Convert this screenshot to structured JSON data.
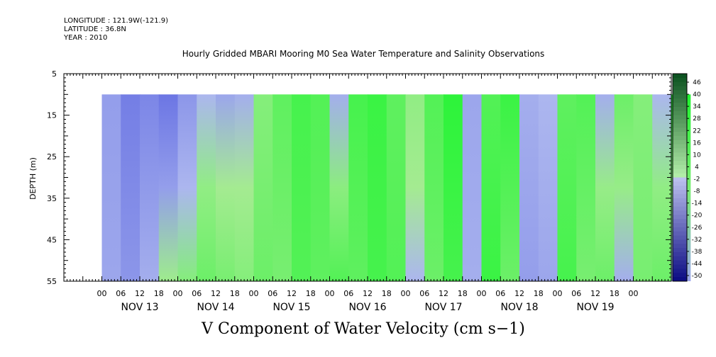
{
  "header": {
    "longitude": "LONGITUDE : 121.9W(-121.9)",
    "latitude": "LATITUDE : 36.8N",
    "year": "YEAR : 2010"
  },
  "chart_data": {
    "type": "heatmap",
    "title": "Hourly Gridded MBARI Mooring M0 Sea Water Temperature and Salinity Observations",
    "xlabel": "V Component of Water Velocity (cm s−1)",
    "ylabel": "DEPTH (m)",
    "ylim": [
      55,
      5
    ],
    "y_ticks": [
      5,
      15,
      25,
      35,
      45,
      55
    ],
    "x_hour_ticks": [
      "00",
      "06",
      "12",
      "18",
      "00",
      "06",
      "12",
      "18",
      "00",
      "06",
      "12",
      "18",
      "00",
      "06",
      "12",
      "18",
      "00",
      "06",
      "12",
      "18",
      "00",
      "06",
      "12",
      "18",
      "00",
      "06",
      "12",
      "18",
      "00"
    ],
    "x_day_labels": [
      "NOV 13",
      "NOV 14",
      "NOV 15",
      "NOV 16",
      "NOV 17",
      "NOV 18",
      "NOV 19"
    ],
    "data_depth_range": [
      10,
      55
    ],
    "colorbar": {
      "levels": [
        "46",
        "40",
        "34",
        "28",
        "22",
        "16",
        "10",
        "4",
        "-2",
        "-8",
        "-14",
        "-20",
        "-26",
        "-32",
        "-38",
        "-44",
        "-50"
      ],
      "min": -50,
      "max": 50
    },
    "columns": [
      {
        "time_hours": 3,
        "top": -8,
        "bottom": -6
      },
      {
        "time_hours": 9,
        "top": -16,
        "bottom": -10
      },
      {
        "time_hours": 15,
        "top": -14,
        "bottom": -4
      },
      {
        "time_hours": 21,
        "top": -18,
        "bottom": 2
      },
      {
        "time_hours": 27,
        "top": -10,
        "bottom": 6
      },
      {
        "time_hours": 33,
        "top": -2,
        "bottom": 10
      },
      {
        "time_hours": 39,
        "top": -6,
        "bottom": 8
      },
      {
        "time_hours": 45,
        "top": -4,
        "bottom": 6
      },
      {
        "time_hours": 51,
        "top": 6,
        "bottom": 10
      },
      {
        "time_hours": 57,
        "top": 12,
        "bottom": 8
      },
      {
        "time_hours": 63,
        "top": 16,
        "bottom": 14
      },
      {
        "time_hours": 69,
        "top": 14,
        "bottom": 12
      },
      {
        "time_hours": 75,
        "top": -4,
        "bottom": 14
      },
      {
        "time_hours": 81,
        "top": 16,
        "bottom": 12
      },
      {
        "time_hours": 87,
        "top": 18,
        "bottom": 16
      },
      {
        "time_hours": 93,
        "top": 12,
        "bottom": 14
      },
      {
        "time_hours": 99,
        "top": 4,
        "bottom": -2
      },
      {
        "time_hours": 105,
        "top": 14,
        "bottom": 10
      },
      {
        "time_hours": 111,
        "top": 20,
        "bottom": 16
      },
      {
        "time_hours": 117,
        "top": -6,
        "bottom": -4
      },
      {
        "time_hours": 123,
        "top": 14,
        "bottom": 18
      },
      {
        "time_hours": 129,
        "top": 18,
        "bottom": 10
      },
      {
        "time_hours": 135,
        "top": -4,
        "bottom": -8
      },
      {
        "time_hours": 141,
        "top": -2,
        "bottom": -6
      },
      {
        "time_hours": 147,
        "top": 12,
        "bottom": 16
      },
      {
        "time_hours": 153,
        "top": 14,
        "bottom": 8
      },
      {
        "time_hours": 159,
        "top": -4,
        "bottom": 10
      },
      {
        "time_hours": 165,
        "top": 10,
        "bottom": -4
      },
      {
        "time_hours": 171,
        "top": 6,
        "bottom": 8
      },
      {
        "time_hours": 177,
        "top": -2,
        "bottom": 10
      },
      {
        "time_hours": 183,
        "top": 22,
        "bottom": -6
      }
    ]
  }
}
